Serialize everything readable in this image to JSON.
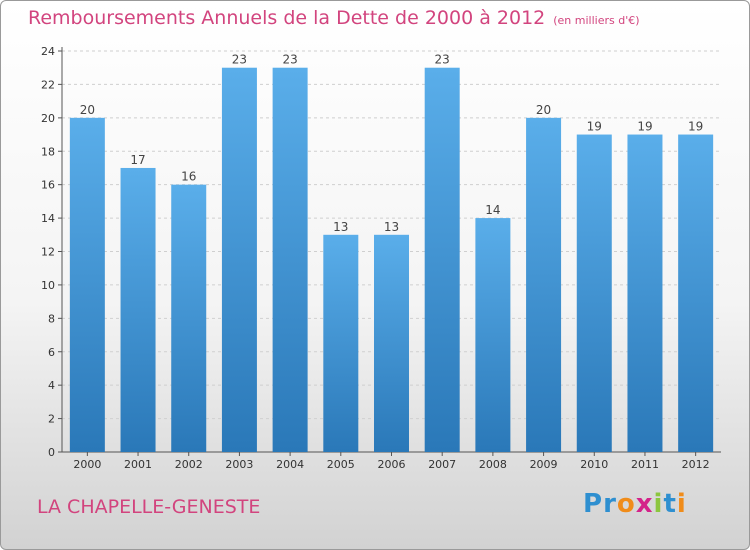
{
  "header": {
    "title": "Remboursements Annuels de la Dette de 2000 à 2012",
    "unit": "(en milliers d'€)"
  },
  "footer": {
    "place": "LA CHAPELLE-GENESTE",
    "logo_letters": [
      "P",
      "r",
      "o",
      "x",
      "i",
      "t",
      "i"
    ],
    "logo_colors": [
      "#2e8fd0",
      "#2e8fd0",
      "#f08c1a",
      "#d4238a",
      "#8cc63f",
      "#2e8fd0",
      "#f08c1a"
    ]
  },
  "colors": {
    "bar_top": "#5aaeea",
    "bar_bottom": "#2a78b8",
    "accent": "#d2447e",
    "grid": "#cfcfcf"
  },
  "chart_data": {
    "type": "bar",
    "title": "Remboursements Annuels de la Dette de 2000 à 2012",
    "subtitle": "(en milliers d'€)",
    "categories": [
      "2000",
      "2001",
      "2002",
      "2003",
      "2004",
      "2005",
      "2006",
      "2007",
      "2008",
      "2009",
      "2010",
      "2011",
      "2012"
    ],
    "values": [
      20,
      17,
      16,
      23,
      23,
      13,
      13,
      23,
      14,
      20,
      19,
      19,
      19
    ],
    "yticks": [
      "0",
      "2",
      "4",
      "6",
      "8",
      "10",
      "12",
      "14",
      "16",
      "18",
      "20",
      "22",
      "24"
    ],
    "ylim": [
      0,
      24
    ],
    "grid": true,
    "data_labels": true
  }
}
